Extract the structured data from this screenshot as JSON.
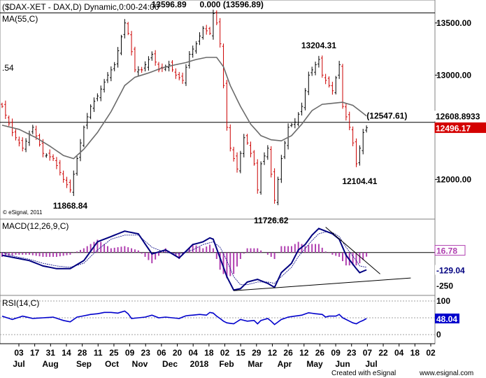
{
  "chart_data": {
    "type": "candlestick",
    "title": "($DAX-XET - DAX,D) Dynamic,0:00-24:00",
    "indicator_label": "MA(55,C)",
    "left_edge_value": ".54",
    "copyright": "© eSignal, 2011",
    "footer_left": "Created with eSignal",
    "footer_right": "www.esignal.com",
    "ylim": [
      11620,
      13720
    ],
    "price_ticks": [
      "13500.00",
      "13000.00",
      "12000.00"
    ],
    "price_tick_values": [
      13500,
      13000,
      12000
    ],
    "horizontal_lines": [
      13596.89,
      12547.61
    ],
    "price_boxes": [
      {
        "label": "12608.8933",
        "value": 12608.89,
        "bg": "#ffffff",
        "fg": "#000000"
      },
      {
        "label": "12496.17",
        "value": 12496.17,
        "bg": "#d40000",
        "fg": "#ffffff"
      }
    ],
    "annotations": [
      {
        "text": "13596.89",
        "x": 49,
        "y": 13596.89,
        "pos": "above"
      },
      {
        "text": "0.000 (13596.89)",
        "x": 58,
        "y": 13596.89,
        "pos": "above-right"
      },
      {
        "text": "13204.31",
        "x": 93,
        "y": 13204.31,
        "pos": "above"
      },
      {
        "text": "(12547.61)",
        "x": 113,
        "y": 12547.61,
        "pos": "above-left"
      },
      {
        "text": "11868.84",
        "x": 20,
        "y": 11868.84,
        "pos": "below"
      },
      {
        "text": "11726.62",
        "x": 79,
        "y": 11726.62,
        "pos": "below"
      },
      {
        "text": "12104.41",
        "x": 105,
        "y": 12104.41,
        "pos": "below"
      }
    ],
    "x_tick_labels": [
      "03",
      "17",
      "31",
      "14",
      "28",
      "11",
      "25",
      "09",
      "23",
      "06",
      "20",
      "04",
      "18",
      "02",
      "15",
      "29",
      "12",
      "26",
      "12",
      "26",
      "09",
      "23",
      "07",
      "22",
      "04",
      "18",
      "02"
    ],
    "month_labels": [
      "Jul",
      "Aug",
      "Sep",
      "Oct",
      "Nov",
      "Dec",
      "2018",
      "Feb",
      "Mar",
      "Apr",
      "May",
      "Jun",
      "Jul"
    ],
    "close_keypoints": [
      [
        0,
        12700
      ],
      [
        3,
        12450
      ],
      [
        6,
        12300
      ],
      [
        9,
        12500
      ],
      [
        12,
        12250
      ],
      [
        15,
        12200
      ],
      [
        18,
        12000
      ],
      [
        20,
        11900
      ],
      [
        22,
        12200
      ],
      [
        24,
        12500
      ],
      [
        26,
        12700
      ],
      [
        28,
        12800
      ],
      [
        31,
        13000
      ],
      [
        33,
        13100
      ],
      [
        36,
        13500
      ],
      [
        37,
        13400
      ],
      [
        39,
        13050
      ],
      [
        41,
        13050
      ],
      [
        44,
        13200
      ],
      [
        46,
        13050
      ],
      [
        49,
        13100
      ],
      [
        51,
        13000
      ],
      [
        53,
        12950
      ],
      [
        55,
        13200
      ],
      [
        57,
        13300
      ],
      [
        59,
        13450
      ],
      [
        61,
        13400
      ],
      [
        62,
        13590
      ],
      [
        63,
        13500
      ],
      [
        64,
        13300
      ],
      [
        65,
        12900
      ],
      [
        66,
        12500
      ],
      [
        67,
        12300
      ],
      [
        69,
        12100
      ],
      [
        71,
        12400
      ],
      [
        72,
        12350
      ],
      [
        74,
        12150
      ],
      [
        75,
        11900
      ],
      [
        76,
        12150
      ],
      [
        78,
        12300
      ],
      [
        79,
        12050
      ],
      [
        80,
        11800
      ],
      [
        82,
        12200
      ],
      [
        84,
        12500
      ],
      [
        86,
        12550
      ],
      [
        88,
        12700
      ],
      [
        90,
        13000
      ],
      [
        92,
        13100
      ],
      [
        93,
        13150
      ],
      [
        94,
        13000
      ],
      [
        96,
        12900
      ],
      [
        97,
        12850
      ],
      [
        99,
        13100
      ],
      [
        100,
        12700
      ],
      [
        101,
        12600
      ],
      [
        102,
        12500
      ],
      [
        103,
        12350
      ],
      [
        104,
        12150
      ],
      [
        105,
        12300
      ],
      [
        106,
        12450
      ],
      [
        107,
        12496
      ]
    ],
    "ma_keypoints": [
      [
        0,
        12520
      ],
      [
        5,
        12480
      ],
      [
        10,
        12400
      ],
      [
        14,
        12320
      ],
      [
        18,
        12230
      ],
      [
        21,
        12200
      ],
      [
        24,
        12290
      ],
      [
        28,
        12450
      ],
      [
        32,
        12650
      ],
      [
        36,
        12900
      ],
      [
        39,
        12980
      ],
      [
        43,
        13020
      ],
      [
        47,
        13070
      ],
      [
        51,
        13100
      ],
      [
        54,
        13120
      ],
      [
        57,
        13150
      ],
      [
        60,
        13170
      ],
      [
        63,
        13170
      ],
      [
        65,
        13080
      ],
      [
        67,
        12900
      ],
      [
        70,
        12700
      ],
      [
        73,
        12530
      ],
      [
        76,
        12420
      ],
      [
        79,
        12380
      ],
      [
        82,
        12370
      ],
      [
        85,
        12420
      ],
      [
        88,
        12530
      ],
      [
        91,
        12660
      ],
      [
        94,
        12720
      ],
      [
        97,
        12730
      ],
      [
        100,
        12740
      ],
      [
        103,
        12710
      ],
      [
        105,
        12660
      ],
      [
        107,
        12609
      ]
    ],
    "macd": {
      "label": "MACD(12,26,9,C)",
      "ylim": [
        -320,
        250
      ],
      "ticks": [
        "16.78",
        "-129.04",
        "-250"
      ],
      "tick_values": [
        16.78,
        -129.04,
        -250
      ],
      "macd_keypoints": [
        [
          0,
          -20
        ],
        [
          4,
          -40
        ],
        [
          8,
          -60
        ],
        [
          12,
          -100
        ],
        [
          16,
          -120
        ],
        [
          20,
          -120
        ],
        [
          24,
          -60
        ],
        [
          28,
          80
        ],
        [
          32,
          120
        ],
        [
          36,
          160
        ],
        [
          40,
          140
        ],
        [
          44,
          -10
        ],
        [
          48,
          20
        ],
        [
          52,
          -40
        ],
        [
          56,
          60
        ],
        [
          59,
          80
        ],
        [
          61,
          110
        ],
        [
          62,
          100
        ],
        [
          64,
          -40
        ],
        [
          66,
          -180
        ],
        [
          68,
          -280
        ],
        [
          70,
          -270
        ],
        [
          72,
          -220
        ],
        [
          75,
          -200
        ],
        [
          78,
          -230
        ],
        [
          80,
          -260
        ],
        [
          82,
          -150
        ],
        [
          85,
          -80
        ],
        [
          87,
          20
        ],
        [
          89,
          60
        ],
        [
          91,
          130
        ],
        [
          93,
          180
        ],
        [
          95,
          160
        ],
        [
          97,
          140
        ],
        [
          99,
          100
        ],
        [
          101,
          -20
        ],
        [
          104,
          -120
        ],
        [
          105,
          -150
        ],
        [
          107,
          -129
        ]
      ],
      "signal_keypoints": [
        [
          0,
          0
        ],
        [
          4,
          -30
        ],
        [
          8,
          -50
        ],
        [
          12,
          -80
        ],
        [
          16,
          -100
        ],
        [
          20,
          -110
        ],
        [
          24,
          -80
        ],
        [
          28,
          20
        ],
        [
          32,
          100
        ],
        [
          36,
          130
        ],
        [
          40,
          130
        ],
        [
          44,
          40
        ],
        [
          48,
          0
        ],
        [
          52,
          -10
        ],
        [
          56,
          20
        ],
        [
          59,
          60
        ],
        [
          62,
          80
        ],
        [
          64,
          40
        ],
        [
          66,
          -60
        ],
        [
          68,
          -180
        ],
        [
          70,
          -240
        ],
        [
          72,
          -240
        ],
        [
          75,
          -220
        ],
        [
          78,
          -220
        ],
        [
          80,
          -230
        ],
        [
          82,
          -180
        ],
        [
          85,
          -110
        ],
        [
          87,
          -30
        ],
        [
          89,
          30
        ],
        [
          91,
          90
        ],
        [
          93,
          140
        ],
        [
          95,
          155
        ],
        [
          97,
          150
        ],
        [
          99,
          120
        ],
        [
          101,
          40
        ],
        [
          104,
          -60
        ],
        [
          105,
          -100
        ],
        [
          107,
          -110
        ]
      ],
      "trendlines": [
        [
          [
            68,
            -285
          ],
          [
            120,
            -190
          ]
        ],
        [
          [
            95,
            190
          ],
          [
            111,
            -160
          ]
        ]
      ]
    },
    "rsi": {
      "label": "RSI(14,C)",
      "ylim": [
        0,
        100
      ],
      "ticks": [
        "100",
        "48.04",
        "0"
      ],
      "tick_values": [
        100,
        48.04,
        0
      ],
      "keypoints": [
        [
          0,
          55
        ],
        [
          3,
          45
        ],
        [
          6,
          55
        ],
        [
          9,
          48
        ],
        [
          12,
          50
        ],
        [
          15,
          52
        ],
        [
          18,
          42
        ],
        [
          20,
          38
        ],
        [
          22,
          52
        ],
        [
          24,
          56
        ],
        [
          26,
          60
        ],
        [
          28,
          62
        ],
        [
          30,
          66
        ],
        [
          32,
          66
        ],
        [
          34,
          64
        ],
        [
          36,
          70
        ],
        [
          37,
          62
        ],
        [
          38,
          48
        ],
        [
          40,
          50
        ],
        [
          42,
          52
        ],
        [
          44,
          58
        ],
        [
          46,
          50
        ],
        [
          48,
          52
        ],
        [
          50,
          50
        ],
        [
          52,
          48
        ],
        [
          54,
          56
        ],
        [
          56,
          58
        ],
        [
          58,
          60
        ],
        [
          60,
          58
        ],
        [
          61,
          66
        ],
        [
          62,
          64
        ],
        [
          63,
          55
        ],
        [
          64,
          48
        ],
        [
          65,
          40
        ],
        [
          66,
          35
        ],
        [
          68,
          32
        ],
        [
          70,
          45
        ],
        [
          72,
          40
        ],
        [
          74,
          42
        ],
        [
          75,
          32
        ],
        [
          76,
          42
        ],
        [
          78,
          48
        ],
        [
          79,
          40
        ],
        [
          80,
          30
        ],
        [
          82,
          45
        ],
        [
          84,
          52
        ],
        [
          86,
          55
        ],
        [
          88,
          58
        ],
        [
          90,
          65
        ],
        [
          92,
          62
        ],
        [
          94,
          60
        ],
        [
          95,
          52
        ],
        [
          96,
          55
        ],
        [
          98,
          55
        ],
        [
          99,
          60
        ],
        [
          100,
          50
        ],
        [
          101,
          45
        ],
        [
          102,
          40
        ],
        [
          103,
          35
        ],
        [
          104,
          32
        ],
        [
          105,
          38
        ],
        [
          106,
          42
        ],
        [
          107,
          48
        ]
      ]
    },
    "candle_up_color": "#000000",
    "candle_down_color": "#cc0000",
    "ma_color": "#6b6b6b",
    "macd_color": "#000080",
    "histogram_color": "#b040b0",
    "rsi_color": "#0000cc"
  }
}
